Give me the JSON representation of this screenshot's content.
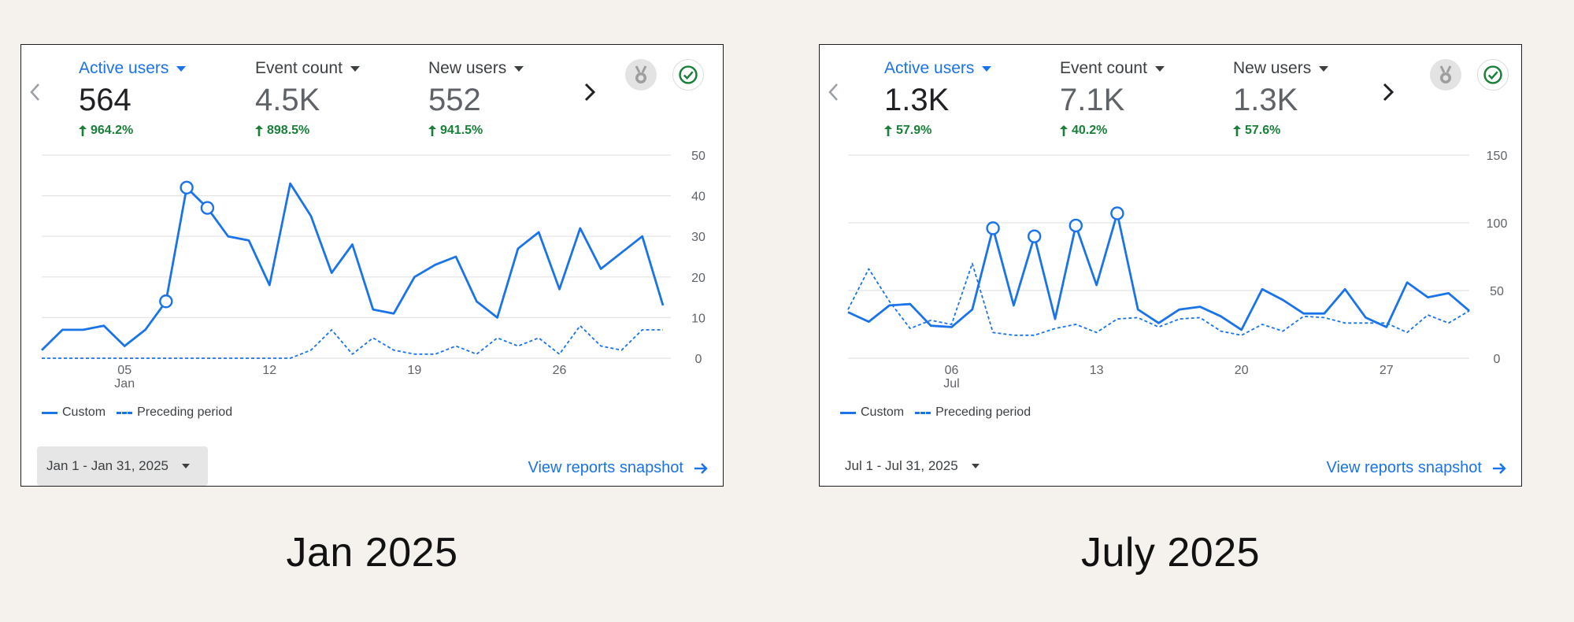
{
  "colors": {
    "accent": "#1a73e8",
    "positive": "#188038",
    "grid": "#e4e4e4",
    "tick": "#5f6368"
  },
  "panels": [
    {
      "caption": "Jan 2025",
      "metrics": [
        {
          "name": "Active users",
          "value": "564",
          "change": "964.2%"
        },
        {
          "name": "Event count",
          "value": "4.5K",
          "change": "898.5%"
        },
        {
          "name": "New users",
          "value": "552",
          "change": "941.5%"
        }
      ],
      "legend": {
        "custom": "Custom",
        "preceding": "Preceding period"
      },
      "date_range": "Jan 1 - Jan 31, 2025",
      "link": "View reports snapshot",
      "icons": [
        "award-badge-icon",
        "check-circle-icon"
      ]
    },
    {
      "caption": "July 2025",
      "metrics": [
        {
          "name": "Active users",
          "value": "1.3K",
          "change": "57.9%"
        },
        {
          "name": "Event count",
          "value": "7.1K",
          "change": "40.2%"
        },
        {
          "name": "New users",
          "value": "1.3K",
          "change": "57.6%"
        }
      ],
      "legend": {
        "custom": "Custom",
        "preceding": "Preceding period"
      },
      "date_range": "Jul 1 - Jul 31, 2025",
      "link": "View reports snapshot",
      "icons": [
        "award-badge-icon",
        "check-circle-icon"
      ]
    }
  ],
  "chart_data": [
    {
      "type": "line",
      "xlabels": [
        {
          "day": 5,
          "text": "05",
          "sub": "Jan"
        },
        {
          "day": 12,
          "text": "12"
        },
        {
          "day": 19,
          "text": "19"
        },
        {
          "day": 26,
          "text": "26"
        }
      ],
      "ylim": [
        0,
        50
      ],
      "yticks": [
        0,
        10,
        20,
        30,
        40,
        50
      ],
      "grid": true,
      "series": [
        {
          "name": "Custom",
          "style": "solid",
          "x": [
            1,
            2,
            3,
            4,
            5,
            6,
            7,
            8,
            9,
            10,
            11,
            12,
            13,
            14,
            15,
            16,
            17,
            18,
            19,
            20,
            21,
            22,
            23,
            24,
            25,
            26,
            27,
            28,
            29,
            30,
            31
          ],
          "values": [
            2,
            7,
            7,
            8,
            3,
            7,
            14,
            42,
            37,
            30,
            29,
            18,
            43,
            35,
            21,
            28,
            12,
            11,
            20,
            23,
            25,
            14,
            10,
            27,
            31,
            17,
            32,
            22,
            26,
            30,
            13
          ],
          "markers": [
            7,
            8,
            9
          ]
        },
        {
          "name": "Preceding period",
          "style": "dashed",
          "x": [
            1,
            2,
            3,
            4,
            5,
            6,
            7,
            8,
            9,
            10,
            11,
            12,
            13,
            14,
            15,
            16,
            17,
            18,
            19,
            20,
            21,
            22,
            23,
            24,
            25,
            26,
            27,
            28,
            29,
            30,
            31
          ],
          "values": [
            0,
            0,
            0,
            0,
            0,
            0,
            0,
            0,
            0,
            0,
            0,
            0,
            0,
            2,
            7,
            1,
            5,
            2,
            1,
            1,
            3,
            1,
            5,
            3,
            5,
            1,
            8,
            3,
            2,
            7,
            7
          ],
          "markers": []
        }
      ]
    },
    {
      "type": "line",
      "xlabels": [
        {
          "day": 6,
          "text": "06",
          "sub": "Jul"
        },
        {
          "day": 13,
          "text": "13"
        },
        {
          "day": 20,
          "text": "20"
        },
        {
          "day": 27,
          "text": "27"
        }
      ],
      "ylim": [
        0,
        150
      ],
      "yticks": [
        0,
        50,
        100,
        150
      ],
      "grid": true,
      "series": [
        {
          "name": "Custom",
          "style": "solid",
          "x": [
            1,
            2,
            3,
            4,
            5,
            6,
            7,
            8,
            9,
            10,
            11,
            12,
            13,
            14,
            15,
            16,
            17,
            18,
            19,
            20,
            21,
            22,
            23,
            24,
            25,
            26,
            27,
            28,
            29,
            30,
            31
          ],
          "values": [
            34,
            27,
            39,
            40,
            24,
            23,
            36,
            96,
            39,
            90,
            29,
            98,
            54,
            107,
            36,
            26,
            36,
            38,
            31,
            21,
            51,
            43,
            33,
            33,
            51,
            30,
            23,
            56,
            45,
            48,
            35
          ],
          "markers": [
            8,
            10,
            12,
            14
          ]
        },
        {
          "name": "Preceding period",
          "style": "dashed",
          "x": [
            1,
            2,
            3,
            4,
            5,
            6,
            7,
            8,
            9,
            10,
            11,
            12,
            13,
            14,
            15,
            16,
            17,
            18,
            19,
            20,
            21,
            22,
            23,
            24,
            25,
            26,
            27,
            28,
            29,
            30,
            31
          ],
          "values": [
            36,
            66,
            42,
            22,
            28,
            25,
            70,
            19,
            17,
            17,
            22,
            25,
            19,
            29,
            30,
            23,
            29,
            30,
            20,
            17,
            25,
            20,
            31,
            30,
            26,
            26,
            26,
            19,
            32,
            26,
            35
          ],
          "markers": []
        }
      ]
    }
  ]
}
